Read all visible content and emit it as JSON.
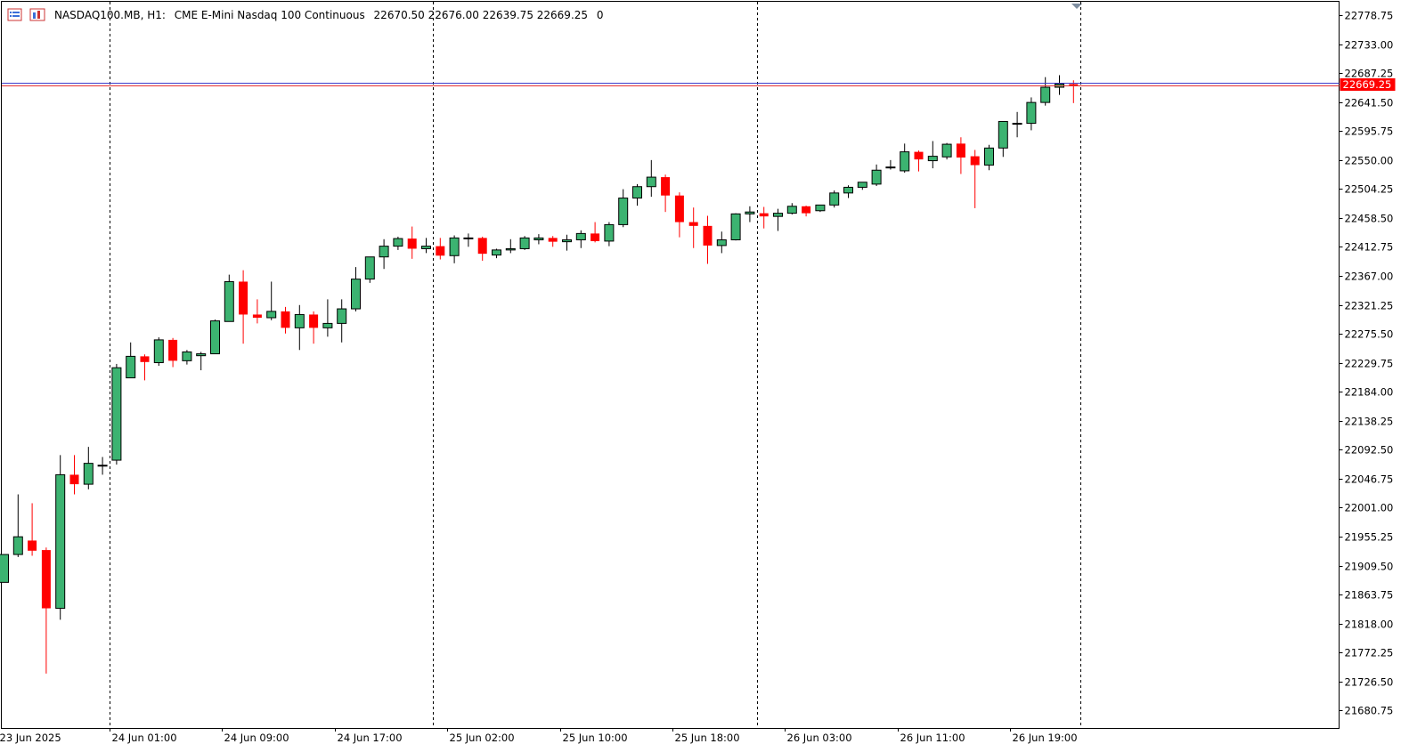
{
  "header": {
    "symbol": "NASDAQ100.MB, H1:",
    "description": "CME E-Mini Nasdaq 100 Continuous",
    "ohlc": "22670.50 22676.00 22639.75 22669.25",
    "volume": "0",
    "icons": [
      "chart-list-icon",
      "chart-window-icon"
    ]
  },
  "colors": {
    "bull": "#3cb371",
    "bear": "#ff0000",
    "outline": "#000000",
    "bid_line": "#3d3dcc",
    "ask_line": "#e63232",
    "price_tag": "#ff0000"
  },
  "chart_data": {
    "type": "candlestick",
    "timeframe": "H1",
    "y_range": [
      21653,
      22800
    ],
    "current_price": "22669.25",
    "y_ticks": [
      "22778.75",
      "22733.00",
      "22687.25",
      "22641.50",
      "22595.75",
      "22550.00",
      "22504.25",
      "22458.50",
      "22412.75",
      "22367.00",
      "22321.25",
      "22275.50",
      "22229.75",
      "22184.00",
      "22138.25",
      "22092.50",
      "22046.75",
      "22001.00",
      "21955.25",
      "21909.50",
      "21863.75",
      "21818.00",
      "21772.25",
      "21726.50",
      "21680.75"
    ],
    "x_ticks": [
      {
        "label": "23 Jun 2025",
        "index": 0
      },
      {
        "label": "24 Jun 01:00",
        "index": 8
      },
      {
        "label": "24 Jun 09:00",
        "index": 16
      },
      {
        "label": "24 Jun 17:00",
        "index": 24
      },
      {
        "label": "25 Jun 02:00",
        "index": 32
      },
      {
        "label": "25 Jun 10:00",
        "index": 40
      },
      {
        "label": "25 Jun 18:00",
        "index": 48
      },
      {
        "label": "26 Jun 03:00",
        "index": 56
      },
      {
        "label": "26 Jun 11:00",
        "index": 64
      },
      {
        "label": "26 Jun 19:00",
        "index": 72
      }
    ],
    "separators": [
      7.5,
      30.5,
      53.5,
      76.5
    ],
    "candles": [
      [
        21883,
        21927,
        21883,
        21927
      ],
      [
        21927,
        22022,
        21923,
        21955
      ],
      [
        21949,
        22008,
        21925,
        21933
      ],
      [
        21934,
        21938,
        21739,
        21842
      ],
      [
        21842,
        22084,
        21824,
        22053
      ],
      [
        22053,
        22084,
        22022,
        22038
      ],
      [
        22038,
        22097,
        22030,
        22071
      ],
      [
        22068,
        22081,
        22053,
        22068
      ],
      [
        22076,
        22228,
        22069,
        22222
      ],
      [
        22206,
        22262,
        22206,
        22240
      ],
      [
        22240,
        22243,
        22202,
        22231
      ],
      [
        22230,
        22270,
        22225,
        22266
      ],
      [
        22266,
        22269,
        22223,
        22233
      ],
      [
        22233,
        22250,
        22227,
        22247
      ],
      [
        22241,
        22247,
        22218,
        22244
      ],
      [
        22244,
        22298,
        22244,
        22296
      ],
      [
        22295,
        22369,
        22295,
        22358
      ],
      [
        22358,
        22376,
        22260,
        22306
      ],
      [
        22306,
        22330,
        22292,
        22301
      ],
      [
        22301,
        22358,
        22297,
        22311
      ],
      [
        22311,
        22318,
        22276,
        22285
      ],
      [
        22285,
        22321,
        22250,
        22306
      ],
      [
        22306,
        22311,
        22260,
        22285
      ],
      [
        22285,
        22330,
        22271,
        22292
      ],
      [
        22292,
        22330,
        22262,
        22315
      ],
      [
        22315,
        22381,
        22311,
        22362
      ],
      [
        22362,
        22392,
        22356,
        22397
      ],
      [
        22397,
        22425,
        22378,
        22414
      ],
      [
        22414,
        22429,
        22408,
        22426
      ],
      [
        22426,
        22445,
        22394,
        22410
      ],
      [
        22410,
        22427,
        22403,
        22414
      ],
      [
        22414,
        22427,
        22393,
        22399
      ],
      [
        22399,
        22431,
        22387,
        22427
      ],
      [
        22427,
        22434,
        22413,
        22427
      ],
      [
        22427,
        22429,
        22391,
        22402
      ],
      [
        22400,
        22410,
        22395,
        22408
      ],
      [
        22408,
        22425,
        22403,
        22410
      ],
      [
        22410,
        22430,
        22408,
        22427
      ],
      [
        22424,
        22433,
        22417,
        22427
      ],
      [
        22427,
        22430,
        22413,
        22421
      ],
      [
        22421,
        22432,
        22407,
        22424
      ],
      [
        22424,
        22439,
        22411,
        22434
      ],
      [
        22434,
        22452,
        22420,
        22422
      ],
      [
        22422,
        22452,
        22414,
        22448
      ],
      [
        22448,
        22504,
        22444,
        22490
      ],
      [
        22490,
        22512,
        22478,
        22508
      ],
      [
        22508,
        22550,
        22492,
        22523
      ],
      [
        22523,
        22527,
        22468,
        22494
      ],
      [
        22494,
        22499,
        22428,
        22452
      ],
      [
        22452,
        22475,
        22411,
        22446
      ],
      [
        22446,
        22462,
        22386,
        22415
      ],
      [
        22415,
        22437,
        22403,
        22424
      ],
      [
        22424,
        22466,
        22423,
        22465
      ],
      [
        22465,
        22477,
        22452,
        22468
      ],
      [
        22466,
        22476,
        22442,
        22461
      ],
      [
        22461,
        22473,
        22438,
        22466
      ],
      [
        22466,
        22482,
        22464,
        22477
      ],
      [
        22477,
        22478,
        22461,
        22466
      ],
      [
        22470,
        22478,
        22468,
        22479
      ],
      [
        22479,
        22502,
        22475,
        22498
      ],
      [
        22498,
        22510,
        22490,
        22507
      ],
      [
        22507,
        22515,
        22503,
        22515
      ],
      [
        22512,
        22543,
        22509,
        22534
      ],
      [
        22538,
        22550,
        22535,
        22539
      ],
      [
        22533,
        22576,
        22530,
        22563
      ],
      [
        22563,
        22565,
        22532,
        22551
      ],
      [
        22549,
        22580,
        22537,
        22556
      ],
      [
        22555,
        22577,
        22551,
        22575
      ],
      [
        22576,
        22586,
        22528,
        22554
      ],
      [
        22556,
        22566,
        22474,
        22542
      ],
      [
        22542,
        22574,
        22534,
        22569
      ],
      [
        22569,
        22609,
        22555,
        22611
      ],
      [
        22607,
        22626,
        22586,
        22608
      ],
      [
        22608,
        22649,
        22597,
        22641
      ],
      [
        22641,
        22681,
        22636,
        22665
      ],
      [
        22665,
        22684,
        22653,
        22670
      ],
      [
        22670,
        22676,
        22640,
        22669
      ]
    ]
  }
}
